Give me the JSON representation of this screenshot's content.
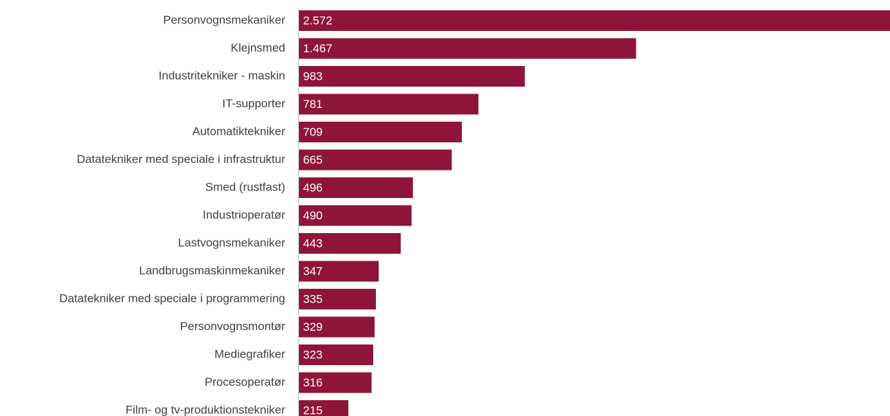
{
  "chart_data": {
    "type": "bar",
    "orientation": "horizontal",
    "categories": [
      "Personvognsmekaniker",
      "Klejnsmed",
      "Industritekniker - maskin",
      "IT-supporter",
      "Automatiktekniker",
      "Datatekniker med speciale i infrastruktur",
      "Smed (rustfast)",
      "Industrioperatør",
      "Lastvognsmekaniker",
      "Landbrugsmaskinmekaniker",
      "Datatekniker med speciale i programmering",
      "Personvognsmontør",
      "Mediegrafiker",
      "Procesoperatør",
      "Film- og tv-produktionstekniker"
    ],
    "values": [
      2572,
      1467,
      983,
      781,
      709,
      665,
      496,
      490,
      443,
      347,
      335,
      329,
      323,
      316,
      215
    ],
    "value_labels": [
      "2.572",
      "1.467",
      "983",
      "781",
      "709",
      "665",
      "496",
      "490",
      "443",
      "347",
      "335",
      "329",
      "323",
      "316",
      "215"
    ],
    "xlim": [
      0,
      2572
    ],
    "grid": false,
    "legend": "none",
    "bar_color": "#8e1539",
    "axis_color": "#bfbfbf"
  }
}
